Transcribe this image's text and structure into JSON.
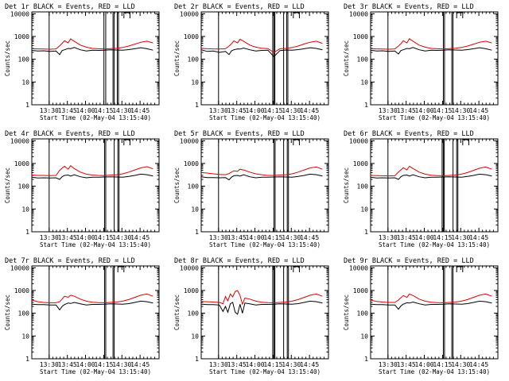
{
  "colors": {
    "events": "#000000",
    "lld": "#e00000",
    "background": "#ffffff"
  },
  "common": {
    "xlabel": "Start Time (02-May-04 13:15:40)",
    "ylabel": "Counts/sec",
    "x_ticks": [
      "13:30",
      "13:45",
      "14:00",
      "14:15",
      "14:30",
      "14:45"
    ],
    "x_tick_minutes": [
      14.33,
      29.33,
      44.33,
      59.33,
      74.33,
      89.33
    ],
    "xlim_minutes": [
      0,
      105
    ],
    "y_ticks": [
      "1",
      "10",
      "100",
      "1000",
      "10000"
    ],
    "y_tick_values": [
      1,
      10,
      100,
      1000,
      10000
    ],
    "ylim": [
      1,
      12000
    ],
    "yscale": "log"
  },
  "chart_data": [
    {
      "type": "line",
      "title": "Det 1r  BLACK = Events, RED = LLD",
      "vlines": [
        14.3,
        59.5,
        61.0,
        67.0,
        68.0,
        70.5,
        71.5
      ],
      "bars": [
        [
          76,
          81
        ]
      ],
      "series": [
        {
          "color": "black",
          "x": [
            0,
            5,
            10,
            15,
            20,
            23,
            25,
            27,
            30,
            32,
            35,
            40,
            45,
            50,
            55,
            60,
            65,
            70,
            75,
            80,
            85,
            90,
            95,
            100
          ],
          "y": [
            245,
            230,
            235,
            220,
            230,
            160,
            240,
            260,
            300,
            290,
            330,
            260,
            230,
            250,
            245,
            250,
            260,
            255,
            250,
            265,
            290,
            320,
            290,
            250
          ]
        },
        {
          "color": "red",
          "x": [
            0,
            5,
            10,
            15,
            20,
            23,
            25,
            27,
            30,
            32,
            35,
            40,
            45,
            50,
            55,
            60,
            65,
            70,
            75,
            80,
            85,
            90,
            95,
            100
          ],
          "y": [
            290,
            285,
            280,
            275,
            285,
            390,
            500,
            650,
            520,
            780,
            620,
            420,
            340,
            300,
            290,
            280,
            295,
            305,
            330,
            380,
            460,
            560,
            620,
            520
          ]
        }
      ]
    },
    {
      "type": "line",
      "title": "Det 2r  BLACK = Events, RED = LLD",
      "vlines": [
        14.3,
        59.0,
        60.0,
        60.8,
        68.0,
        70.5,
        71.5
      ],
      "bars": [
        [
          76,
          81
        ]
      ],
      "series": [
        {
          "color": "black",
          "x": [
            0,
            5,
            10,
            15,
            20,
            23,
            25,
            27,
            30,
            32,
            35,
            40,
            45,
            50,
            55,
            60,
            65,
            70,
            75,
            80,
            85,
            90,
            95,
            100
          ],
          "y": [
            260,
            220,
            230,
            200,
            220,
            160,
            235,
            260,
            285,
            280,
            310,
            260,
            230,
            245,
            250,
            130,
            240,
            255,
            250,
            265,
            290,
            320,
            300,
            260
          ]
        },
        {
          "color": "red",
          "x": [
            0,
            5,
            10,
            15,
            20,
            23,
            25,
            27,
            30,
            32,
            35,
            40,
            45,
            50,
            55,
            60,
            65,
            70,
            75,
            80,
            85,
            90,
            95,
            100
          ],
          "y": [
            300,
            290,
            285,
            280,
            290,
            380,
            480,
            640,
            520,
            760,
            620,
            420,
            340,
            305,
            295,
            200,
            290,
            300,
            330,
            380,
            470,
            560,
            620,
            500
          ]
        }
      ]
    },
    {
      "type": "line",
      "title": "Det 3r  BLACK = Events, RED = LLD",
      "vlines": [
        14.3,
        60.0,
        61.0,
        67.0,
        68.0
      ],
      "bars": [
        [
          71,
          76
        ]
      ],
      "series": [
        {
          "color": "black",
          "x": [
            0,
            5,
            10,
            15,
            20,
            23,
            25,
            27,
            30,
            32,
            35,
            40,
            45,
            50,
            55,
            60,
            65,
            70,
            75,
            80,
            85,
            90,
            95,
            100
          ],
          "y": [
            250,
            230,
            235,
            220,
            230,
            170,
            240,
            260,
            300,
            290,
            330,
            260,
            230,
            250,
            245,
            250,
            260,
            255,
            250,
            265,
            290,
            320,
            290,
            250
          ]
        },
        {
          "color": "red",
          "x": [
            0,
            5,
            10,
            15,
            20,
            23,
            25,
            27,
            30,
            32,
            35,
            40,
            45,
            50,
            55,
            60,
            65,
            70,
            75,
            80,
            85,
            90,
            95,
            100
          ],
          "y": [
            290,
            285,
            280,
            275,
            285,
            380,
            480,
            650,
            520,
            800,
            620,
            420,
            340,
            300,
            290,
            280,
            295,
            305,
            330,
            380,
            460,
            560,
            620,
            520
          ]
        }
      ]
    },
    {
      "type": "line",
      "title": "Det 4r  BLACK = Events, RED = LLD",
      "vlines": [
        14.3,
        60.0,
        61.0,
        68.0,
        71.0,
        72.0
      ],
      "bars": [
        [
          76,
          81
        ]
      ],
      "series": [
        {
          "color": "black",
          "x": [
            0,
            5,
            10,
            15,
            20,
            23,
            25,
            27,
            30,
            32,
            35,
            40,
            45,
            50,
            55,
            60,
            65,
            70,
            75,
            80,
            85,
            90,
            95,
            100
          ],
          "y": [
            250,
            230,
            235,
            230,
            235,
            200,
            260,
            300,
            310,
            280,
            320,
            260,
            235,
            250,
            250,
            255,
            260,
            255,
            250,
            270,
            300,
            340,
            320,
            280
          ]
        },
        {
          "color": "red",
          "x": [
            0,
            5,
            10,
            15,
            20,
            23,
            25,
            27,
            30,
            32,
            35,
            40,
            45,
            50,
            55,
            60,
            65,
            70,
            75,
            80,
            85,
            90,
            95,
            100
          ],
          "y": [
            310,
            300,
            300,
            295,
            300,
            500,
            620,
            760,
            560,
            800,
            600,
            420,
            340,
            310,
            300,
            295,
            310,
            320,
            350,
            420,
            520,
            640,
            720,
            580
          ]
        }
      ]
    },
    {
      "type": "line",
      "title": "Det 5r  BLACK = Events, RED = LLD",
      "vlines": [
        14.3,
        60.0,
        61.0,
        68.0,
        71.0,
        72.0
      ],
      "bars": [
        [
          76,
          81
        ]
      ],
      "series": [
        {
          "color": "black",
          "x": [
            0,
            5,
            10,
            15,
            20,
            23,
            25,
            27,
            30,
            32,
            35,
            40,
            45,
            50,
            55,
            60,
            65,
            70,
            75,
            80,
            85,
            90,
            95,
            100
          ],
          "y": [
            260,
            240,
            240,
            235,
            240,
            190,
            250,
            290,
            300,
            280,
            320,
            260,
            235,
            250,
            250,
            255,
            260,
            255,
            250,
            270,
            300,
            340,
            320,
            280
          ]
        },
        {
          "color": "red",
          "x": [
            0,
            5,
            10,
            15,
            20,
            23,
            25,
            27,
            30,
            32,
            35,
            40,
            45,
            50,
            55,
            60,
            65,
            70,
            75,
            80,
            85,
            90,
            95,
            100
          ],
          "y": [
            400,
            380,
            350,
            330,
            320,
            360,
            420,
            480,
            450,
            560,
            520,
            420,
            350,
            320,
            300,
            300,
            310,
            320,
            350,
            420,
            520,
            640,
            700,
            560
          ]
        }
      ]
    },
    {
      "type": "line",
      "title": "Det 6r  BLACK = Events, RED = LLD",
      "vlines": [
        14.3,
        59.0,
        60.0,
        60.8,
        68.0,
        71.0,
        72.0
      ],
      "bars": [
        [
          76,
          81
        ]
      ],
      "series": [
        {
          "color": "black",
          "x": [
            0,
            5,
            10,
            15,
            20,
            23,
            25,
            27,
            30,
            32,
            35,
            40,
            45,
            50,
            55,
            60,
            65,
            70,
            75,
            80,
            85,
            90,
            95,
            100
          ],
          "y": [
            250,
            230,
            235,
            230,
            235,
            200,
            260,
            300,
            310,
            280,
            320,
            260,
            235,
            250,
            250,
            255,
            260,
            255,
            250,
            270,
            300,
            340,
            320,
            280
          ]
        },
        {
          "color": "red",
          "x": [
            0,
            5,
            10,
            15,
            20,
            23,
            25,
            27,
            30,
            32,
            35,
            40,
            45,
            50,
            55,
            60,
            65,
            70,
            75,
            80,
            85,
            90,
            95,
            100
          ],
          "y": [
            300,
            295,
            290,
            285,
            290,
            420,
            520,
            650,
            520,
            760,
            600,
            420,
            340,
            305,
            295,
            290,
            300,
            310,
            340,
            400,
            500,
            620,
            700,
            560
          ]
        }
      ]
    },
    {
      "type": "line",
      "title": "Det 7r  BLACK = Events, RED = LLD",
      "vlines": [
        14.3,
        60.0,
        61.0,
        67.0,
        68.0
      ],
      "bars": [
        [
          71,
          76
        ]
      ],
      "series": [
        {
          "color": "black",
          "x": [
            0,
            5,
            10,
            15,
            20,
            23,
            25,
            27,
            30,
            32,
            35,
            40,
            45,
            50,
            55,
            60,
            65,
            70,
            75,
            80,
            85,
            90,
            95,
            100
          ],
          "y": [
            250,
            240,
            240,
            230,
            230,
            140,
            200,
            240,
            280,
            270,
            300,
            260,
            230,
            245,
            245,
            250,
            260,
            255,
            250,
            265,
            300,
            340,
            320,
            280
          ]
        },
        {
          "color": "red",
          "x": [
            0,
            5,
            10,
            15,
            20,
            23,
            25,
            27,
            30,
            32,
            35,
            40,
            45,
            50,
            55,
            60,
            65,
            70,
            75,
            80,
            85,
            90,
            95,
            100
          ],
          "y": [
            380,
            320,
            300,
            290,
            290,
            320,
            420,
            560,
            500,
            620,
            560,
            420,
            340,
            305,
            295,
            290,
            300,
            310,
            340,
            400,
            500,
            620,
            700,
            560
          ]
        }
      ]
    },
    {
      "type": "line",
      "title": "Det 8r  BLACK = Events, RED = LLD",
      "vlines": [
        14.3,
        59.0,
        60.0,
        60.8,
        68.0,
        71.0,
        72.0
      ],
      "bars": [
        [
          76,
          81
        ]
      ],
      "series": [
        {
          "color": "black",
          "x": [
            0,
            5,
            10,
            15,
            18,
            20,
            22,
            24,
            26,
            28,
            30,
            32,
            34,
            36,
            40,
            45,
            50,
            55,
            60,
            65,
            70,
            75,
            80,
            85,
            90,
            95,
            100
          ],
          "y": [
            250,
            240,
            240,
            230,
            120,
            200,
            110,
            260,
            300,
            110,
            90,
            250,
            100,
            280,
            260,
            230,
            245,
            245,
            250,
            260,
            255,
            250,
            265,
            300,
            340,
            320,
            280
          ]
        },
        {
          "color": "red",
          "x": [
            0,
            5,
            10,
            15,
            18,
            20,
            22,
            24,
            26,
            28,
            30,
            32,
            34,
            36,
            40,
            45,
            50,
            55,
            60,
            65,
            70,
            75,
            80,
            85,
            90,
            95,
            100
          ],
          "y": [
            330,
            320,
            310,
            300,
            260,
            540,
            350,
            700,
            520,
            900,
            1000,
            600,
            250,
            460,
            420,
            340,
            305,
            295,
            290,
            300,
            310,
            340,
            400,
            500,
            620,
            700,
            560
          ]
        }
      ]
    },
    {
      "type": "line",
      "title": "Det 9r  BLACK = Events, RED = LLD",
      "vlines": [
        14.3,
        60.0,
        61.0,
        67.0,
        68.0
      ],
      "bars": [
        [
          71,
          76
        ]
      ],
      "series": [
        {
          "color": "black",
          "x": [
            0,
            5,
            10,
            15,
            20,
            23,
            25,
            27,
            30,
            32,
            35,
            40,
            45,
            50,
            55,
            60,
            65,
            70,
            75,
            80,
            85,
            90,
            95,
            100
          ],
          "y": [
            250,
            240,
            240,
            230,
            230,
            150,
            210,
            250,
            290,
            280,
            310,
            260,
            230,
            245,
            245,
            250,
            260,
            255,
            250,
            265,
            300,
            340,
            320,
            280
          ]
        },
        {
          "color": "red",
          "x": [
            0,
            5,
            10,
            15,
            20,
            23,
            25,
            27,
            30,
            32,
            35,
            40,
            45,
            50,
            55,
            60,
            65,
            70,
            75,
            80,
            85,
            90,
            95,
            100
          ],
          "y": [
            380,
            330,
            310,
            300,
            300,
            380,
            480,
            600,
            500,
            700,
            600,
            420,
            340,
            305,
            295,
            290,
            300,
            310,
            340,
            400,
            500,
            620,
            700,
            560
          ]
        }
      ]
    }
  ]
}
